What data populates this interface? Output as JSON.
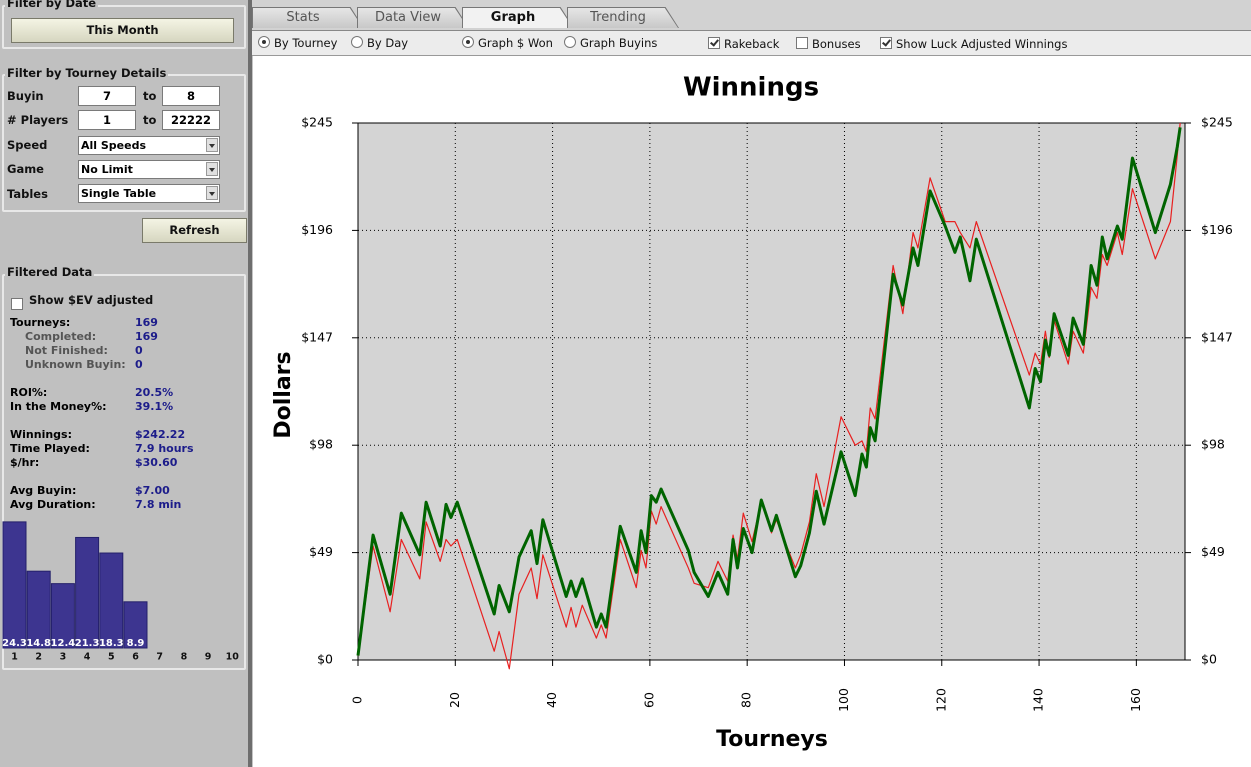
{
  "sidebar": {
    "date_filter": {
      "title": "Filter by Date",
      "button": "This Month"
    },
    "tourney_filter": {
      "title": "Filter by Tourney Details",
      "buyin": {
        "label": "Buyin",
        "from": "7",
        "sep": "to",
        "to": "8"
      },
      "players": {
        "label": "# Players",
        "from": "1",
        "sep": "to",
        "to": "22222"
      },
      "speed": {
        "label": "Speed",
        "value": "All Speeds"
      },
      "game": {
        "label": "Game",
        "value": "No Limit"
      },
      "tables": {
        "label": "Tables",
        "value": "Single Table"
      },
      "button": "Refresh"
    },
    "filtered": {
      "title": "Filtered Data",
      "checkbox": "Show $EV adjusted",
      "tourneys": {
        "label": "Tourneys:",
        "value": "169",
        "details": [
          {
            "label": "Completed:",
            "value": "169"
          },
          {
            "label": "Not Finished:",
            "value": "0"
          },
          {
            "label": "Unknown Buyin:",
            "value": "0"
          }
        ]
      },
      "groups": [
        [
          {
            "label": "ROI%:",
            "value": "20.5%"
          },
          {
            "label": "In the Money%:",
            "value": "39.1%"
          }
        ],
        [
          {
            "label": "Winnings:",
            "value": "$242.22"
          },
          {
            "label": "Time Played:",
            "value": "7.9 hours"
          },
          {
            "label": "$/hr:",
            "value": "$30.60"
          }
        ],
        [
          {
            "label": "Avg Buyin:",
            "value": "$7.00"
          },
          {
            "label": "Avg Duration:",
            "value": "7.8 min"
          }
        ]
      ]
    },
    "finish_chart": {
      "type": "bar",
      "categories": [
        "1",
        "2",
        "3",
        "4",
        "5",
        "6",
        "7",
        "8",
        "9",
        "10"
      ],
      "values": [
        24.3,
        14.8,
        12.4,
        21.3,
        18.3,
        8.9,
        null,
        null,
        null,
        null
      ],
      "color": "#3d3590"
    }
  },
  "tabs": [
    {
      "label": "Stats",
      "active": false
    },
    {
      "label": "Data View",
      "active": false
    },
    {
      "label": "Graph",
      "active": true
    },
    {
      "label": "Trending",
      "active": false
    }
  ],
  "options": {
    "radios": [
      {
        "label": "By Tourney",
        "checked": true
      },
      {
        "label": "By Day",
        "checked": false
      },
      {
        "label": "Graph $ Won",
        "checked": true
      },
      {
        "label": "Graph Buyins",
        "checked": false
      }
    ],
    "checkboxes": [
      {
        "label": "Rakeback",
        "checked": true
      },
      {
        "label": "Bonuses",
        "checked": false
      },
      {
        "label": "Show Luck Adjusted Winnings",
        "checked": true
      }
    ]
  },
  "chart_data": {
    "type": "line",
    "title": "Winnings",
    "x_label": "Tourneys",
    "y_label": "Dollars",
    "x": [
      0,
      3.1,
      6.6,
      8.9,
      12.7,
      14,
      16.9,
      18.1,
      19.1,
      20.4,
      28,
      29,
      31.1,
      33.1,
      35.6,
      36.8,
      38,
      42.8,
      43.8,
      44.8,
      46.1,
      49,
      50,
      51,
      53.9,
      57.2,
      58.2,
      59.2,
      60.3,
      61.3,
      62.3,
      67.9,
      69.1,
      72,
      74,
      76,
      77.1,
      78,
      79.2,
      81,
      82.9,
      85,
      86,
      89.9,
      91,
      92.8,
      94.2,
      95.8,
      99.3,
      102.2,
      103.6,
      104.5,
      105.3,
      106.3,
      110,
      112,
      114.1,
      115.1,
      117.6,
      120.7,
      122.7,
      123.8,
      125.8,
      127.1,
      138,
      139.2,
      140.3,
      141.3,
      142.1,
      143.1,
      146,
      147,
      149.1,
      150.7,
      151.9,
      153,
      154,
      156.1,
      157.1,
      159.2,
      163.9,
      167,
      168.4,
      169
    ],
    "series": [
      {
        "color": "#006400",
        "values": [
          2,
          57,
          30,
          67,
          48,
          72,
          52,
          71,
          65,
          72,
          21,
          34,
          22,
          47,
          59,
          44,
          64,
          29,
          36,
          29,
          37,
          15,
          21,
          15,
          61,
          40,
          59,
          49,
          75,
          72,
          78,
          50,
          40,
          29,
          40,
          30,
          55,
          42,
          60,
          49,
          73,
          59,
          66,
          38,
          43,
          58,
          77,
          62,
          95,
          75,
          94,
          88,
          106,
          100,
          176,
          162,
          188,
          180,
          214,
          198,
          186,
          193,
          173,
          192,
          115,
          133,
          127,
          146,
          139,
          158,
          139,
          156,
          144,
          180,
          171,
          193,
          183,
          198,
          192,
          229,
          195,
          217,
          234,
          243
        ]
      },
      {
        "color": "#e82020",
        "values": [
          2,
          52,
          22,
          55,
          37,
          63,
          45,
          55,
          52,
          55,
          4,
          13,
          -4,
          30,
          42,
          28,
          48,
          15,
          24,
          15,
          25,
          10,
          16,
          10,
          55,
          33,
          50,
          42,
          68,
          62,
          70,
          42,
          35,
          33,
          45,
          36,
          57,
          46,
          67,
          54,
          72,
          58,
          64,
          42,
          48,
          63,
          85,
          70,
          111,
          98,
          100,
          95,
          115,
          110,
          180,
          158,
          195,
          188,
          220,
          200,
          200,
          195,
          188,
          200,
          130,
          140,
          135,
          150,
          138,
          155,
          135,
          150,
          140,
          170,
          165,
          185,
          180,
          195,
          185,
          215,
          183,
          200,
          230,
          245
        ]
      }
    ],
    "xlim": [
      0,
      170
    ],
    "xticks": [
      0,
      20,
      40,
      60,
      80,
      100,
      120,
      140,
      160
    ],
    "ylim": [
      0,
      245
    ],
    "yticks": [
      {
        "value": 0,
        "label": "$0"
      },
      {
        "value": 49,
        "label": "$49"
      },
      {
        "value": 98,
        "label": "$98"
      },
      {
        "value": 147,
        "label": "$147"
      },
      {
        "value": 196,
        "label": "$196"
      },
      {
        "value": 245,
        "label": "$245"
      }
    ],
    "grid": true
  }
}
